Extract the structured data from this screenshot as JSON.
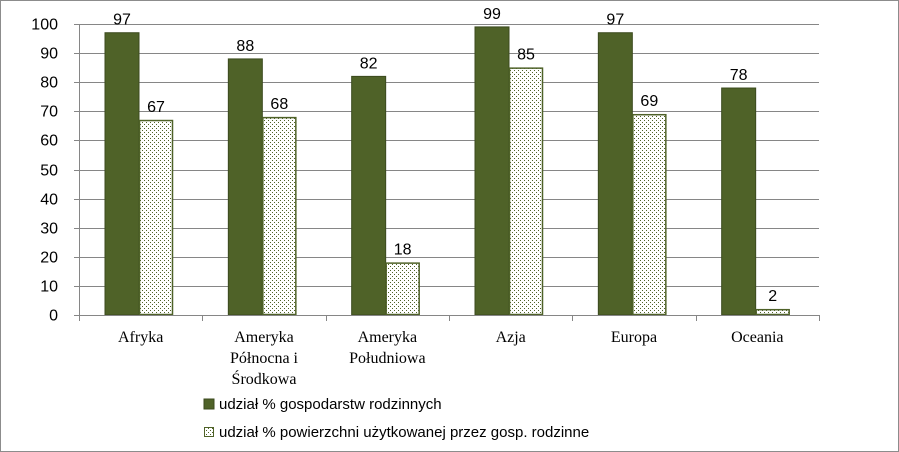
{
  "colors": {
    "series1_fill": "#4f6228",
    "series1_stroke": "#3b4a1e",
    "series2_fill": "#ffffff",
    "series2_dots": "#4f6228",
    "series2_stroke": "#4f6228",
    "grid": "#868686",
    "axis": "#868686"
  },
  "chart_data": {
    "type": "bar",
    "title": "",
    "xlabel": "",
    "ylabel": "",
    "ylim": [
      0,
      100
    ],
    "yticks": [
      0,
      10,
      20,
      30,
      40,
      50,
      60,
      70,
      80,
      90,
      100
    ],
    "grid": true,
    "legend_position": "bottom",
    "categories": [
      [
        "Afryka"
      ],
      [
        "Ameryka",
        "Północna i",
        "Środkowa"
      ],
      [
        "Ameryka",
        "Południowa"
      ],
      [
        "Azja"
      ],
      [
        "Europa"
      ],
      [
        "Oceania"
      ]
    ],
    "series": [
      {
        "name": "udział % gospodarstw rodzinnych",
        "values": [
          97,
          88,
          82,
          99,
          97,
          78
        ]
      },
      {
        "name": "udział % powierzchni użytkowanej przez gosp. rodzinne",
        "values": [
          67,
          68,
          18,
          85,
          69,
          2
        ]
      }
    ]
  }
}
